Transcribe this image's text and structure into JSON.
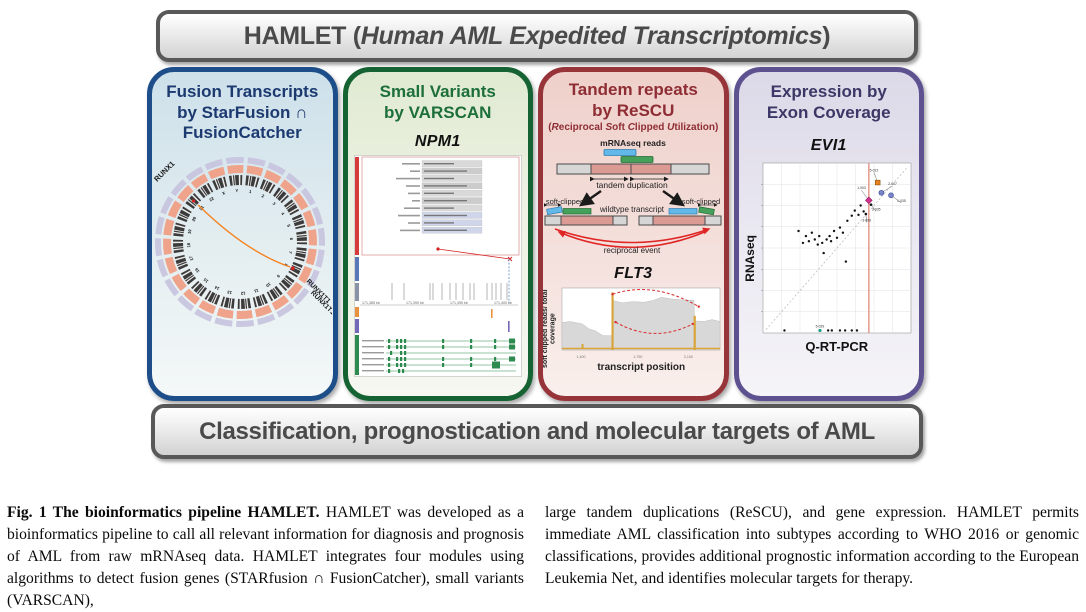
{
  "figure": {
    "top_banner": {
      "segments": [
        {
          "t": "HAMLET (",
          "c": "b"
        },
        {
          "t": "H",
          "c": "bi"
        },
        {
          "t": "uman ",
          "c": "bi"
        },
        {
          "t": "AML ",
          "c": "bi"
        },
        {
          "t": "E",
          "c": "bi"
        },
        {
          "t": "xpedited ",
          "c": "bi"
        },
        {
          "t": "T",
          "c": "bi"
        },
        {
          "t": "ranscriptomics",
          "c": "bi"
        },
        {
          "t": ")",
          "c": "b"
        }
      ]
    },
    "bottom_banner": {
      "text": "Classification, prognostication and molecular targets of AML"
    },
    "panels": {
      "fusion": {
        "title_lines": [
          "Fusion Transcripts",
          "by StarFusion ∩",
          "FusionCatcher"
        ]
      },
      "variants": {
        "title_lines": [
          "Small Variants",
          "by VARSCAN"
        ],
        "gene": "NPM1",
        "ruler_labels": [
          "171,385 kb",
          "171,390 kb",
          "171,395 kb",
          "171,400 kb"
        ]
      },
      "repeats": {
        "title_lines": [
          "Tandem repeats",
          "by ReSCU"
        ],
        "subtitle_segments": [
          {
            "t": "(",
            "c": "b"
          },
          {
            "t": "R",
            "c": "bi"
          },
          {
            "t": "eciprocal ",
            "c": "b"
          },
          {
            "t": "S",
            "c": "bi"
          },
          {
            "t": "oft ",
            "c": "b"
          },
          {
            "t": "C",
            "c": "bi"
          },
          {
            "t": "lipped ",
            "c": "b"
          },
          {
            "t": "U",
            "c": "bi"
          },
          {
            "t": "tilization",
            "c": "b"
          },
          {
            "t": ")",
            "c": "b"
          }
        ],
        "gene": "FLT3",
        "diagram_labels": {
          "reads": "mRNAseq reads",
          "tandem": "tandem duplication",
          "soft_left": "soft-clipped",
          "soft_right": "soft-clipped",
          "wildtype": "wildtype transcript",
          "reciprocal": "reciprocal event"
        },
        "plot": {
          "ylabel": "soft clipped reads/ total coverage",
          "xlabel": "transcript position"
        }
      },
      "expression": {
        "title_lines": [
          "Expression by",
          "Exon Coverage"
        ],
        "gene": "EVI1",
        "xlabel": "Q-RT-PCR",
        "ylabel": "RNAseq"
      }
    }
  },
  "caption": {
    "left_bold": "Fig. 1 The bioinformatics pipeline HAMLET.",
    "left_text": "HAMLET was developed as a bioinformatics pipeline to call all relevant information for diagnosis and prognosis of AML from raw mRNAseq data. HAMLET integrates four modules using algorithms to detect fusion genes (STARfusion ∩ FusionCatcher), small variants (VARSCAN),",
    "right_text": "large tandem duplications (ReSCU), and gene expression. HAMLET permits immediate AML classification into subtypes according to WHO 2016 or genomic classifications, provides additional prognostic information according to the European Leukemia Net, and identifies molecular targets for therapy."
  },
  "chart_data": [
    {
      "id": "fusion-circos",
      "type": "other",
      "subtype": "circos",
      "title": "Fusion transcript RUNX1–RUNX1T1",
      "chromosomes": [
        "1",
        "2",
        "3",
        "4",
        "5",
        "6",
        "7",
        "8",
        "9",
        "10",
        "11",
        "12",
        "13",
        "14",
        "15",
        "16",
        "17",
        "18",
        "19",
        "20",
        "21",
        "22",
        "X",
        "Y"
      ],
      "fusion_link": {
        "from_gene": "RUNX1",
        "from_chrom": "21",
        "to_gene": "RUNX1T1",
        "to_chrom": "8"
      },
      "link_color": "#f5821f",
      "gene_labels": {
        "top_left": "RUNX1",
        "bottom_right": [
          "RUNX1T1",
          "RUNX1T1"
        ]
      }
    },
    {
      "id": "flt3-coverage",
      "type": "area",
      "title": "FLT3",
      "xlabel": "transcript position",
      "ylabel": "soft clipped reads/ total coverage",
      "x_ticks": [
        "1,400",
        "1,750",
        "2,100"
      ],
      "x_tick_pos": [
        0.12,
        0.48,
        0.8
      ],
      "profile": [
        [
          0,
          0.44
        ],
        [
          0.05,
          0.46
        ],
        [
          0.09,
          0.44
        ],
        [
          0.13,
          0.42
        ],
        [
          0.17,
          0.34
        ],
        [
          0.21,
          0.31
        ],
        [
          0.26,
          0.23
        ],
        [
          0.315,
          0.23
        ],
        [
          0.32,
          0.8
        ],
        [
          0.38,
          0.76
        ],
        [
          0.45,
          0.78
        ],
        [
          0.52,
          0.77
        ],
        [
          0.58,
          0.8
        ],
        [
          0.63,
          0.85
        ],
        [
          0.7,
          0.82
        ],
        [
          0.76,
          0.81
        ],
        [
          0.835,
          0.8
        ],
        [
          0.84,
          0.47
        ],
        [
          0.9,
          0.46
        ],
        [
          0.95,
          0.49
        ],
        [
          1,
          0.46
        ]
      ],
      "spikes": [
        {
          "x": 0.32,
          "h": 0.93
        },
        {
          "x": 0.84,
          "h": 0.55
        }
      ],
      "blip_x": 0.13,
      "area_color": "#d8d8d8",
      "spike_color": "#d9a43a",
      "arc_color": "#d92b2b"
    },
    {
      "id": "evi1-scatter",
      "type": "scatter",
      "title": "EVI1",
      "xlabel": "Q-RT-PCR",
      "ylabel": "RNAseq",
      "grid": true,
      "diagonal": true,
      "vline_x": 0.715,
      "vline_color": "#e49488",
      "points": [
        [
          0.24,
          0.4
        ],
        [
          0.27,
          0.47
        ],
        [
          0.29,
          0.43
        ],
        [
          0.31,
          0.46
        ],
        [
          0.33,
          0.41
        ],
        [
          0.35,
          0.45
        ],
        [
          0.37,
          0.48
        ],
        [
          0.38,
          0.43
        ],
        [
          0.4,
          0.47
        ],
        [
          0.41,
          0.53
        ],
        [
          0.43,
          0.45
        ],
        [
          0.45,
          0.43
        ],
        [
          0.46,
          0.46
        ],
        [
          0.48,
          0.4
        ],
        [
          0.5,
          0.44
        ],
        [
          0.52,
          0.38
        ],
        [
          0.54,
          0.41
        ],
        [
          0.56,
          0.58
        ],
        [
          0.57,
          0.34
        ],
        [
          0.6,
          0.31
        ],
        [
          0.62,
          0.28
        ],
        [
          0.645,
          0.305
        ],
        [
          0.66,
          0.25
        ],
        [
          0.68,
          0.285
        ]
      ],
      "baseline_x": [
        0.145,
        0.44,
        0.465,
        0.52,
        0.555,
        0.6,
        0.635
      ],
      "teal_point": {
        "x": 0.385,
        "color": "#1f9e89",
        "label": "5-029"
      },
      "highlights": [
        {
          "x": 0.775,
          "y": 0.115,
          "shape": "square",
          "color": "#e8821e",
          "label": "5-022",
          "lx": 0.75,
          "ly": 0.055
        },
        {
          "x": 0.8,
          "y": 0.175,
          "shape": "circle",
          "color": "#7b86c8",
          "label": "2-047",
          "lx": 0.875,
          "ly": 0.135
        },
        {
          "x": 0.865,
          "y": 0.19,
          "shape": "circle",
          "color": "#7b86c8",
          "label": "1-035",
          "lx": 0.935,
          "ly": 0.235
        },
        {
          "x": 0.715,
          "y": 0.22,
          "shape": "diamond",
          "color": "#d6308f",
          "label": "1-003",
          "lx": 0.665,
          "ly": 0.16
        },
        {
          "x": 0.73,
          "y": 0.245,
          "shape": "dot",
          "color": "#111111",
          "label": "3-035",
          "lx": 0.765,
          "ly": 0.285
        },
        {
          "x": 0.695,
          "y": 0.3,
          "shape": "dot",
          "color": "#111111",
          "label": "3-008",
          "lx": 0.7,
          "ly": 0.35
        }
      ]
    }
  ]
}
